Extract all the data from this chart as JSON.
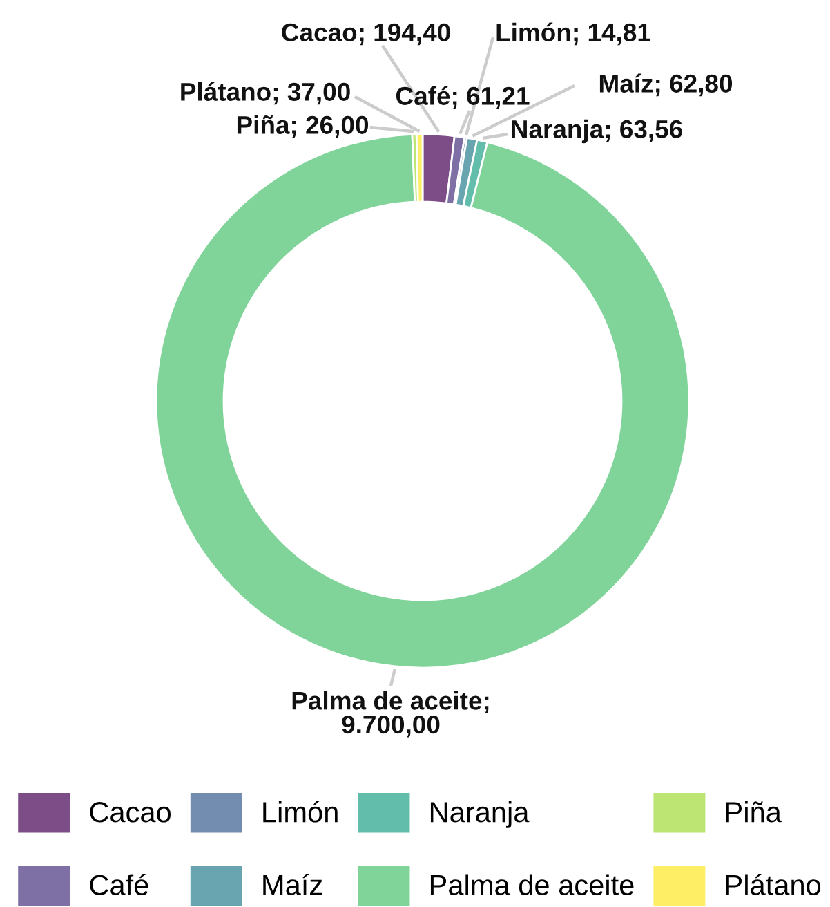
{
  "chart_data": {
    "type": "donut",
    "categories": [
      "Cacao",
      "Café",
      "Limón",
      "Maíz",
      "Naranja",
      "Palma de aceite",
      "Piña",
      "Plátano"
    ],
    "values": [
      194.4,
      61.21,
      14.81,
      62.8,
      63.56,
      9700.0,
      26.0,
      37.0
    ],
    "colors": [
      "#7c4d87",
      "#7e70a5",
      "#728daf",
      "#68a5b0",
      "#62bdab",
      "#80d499",
      "#bce574",
      "#fdee66"
    ],
    "value_labels": [
      "Cacao; 194,40",
      "Café; 61,21",
      "Limón; 14,81",
      "Maíz; 62,80",
      "Naranja; 63,56",
      "Palma de aceite; 9.700,00",
      "Piña; 26,00",
      "Plátano; 37,00"
    ],
    "legend": "bottom"
  }
}
